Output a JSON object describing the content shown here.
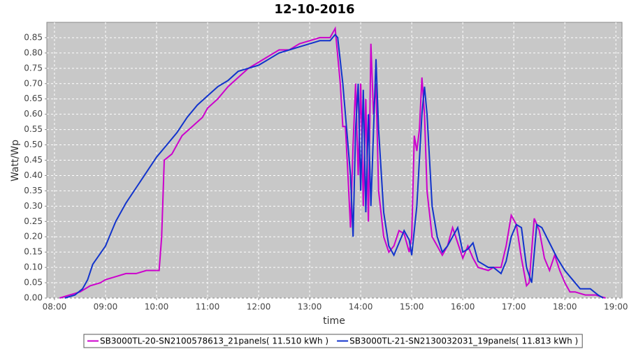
{
  "chart_data": {
    "type": "line",
    "title": "12-10-2016",
    "x_label": "time",
    "y_label": "Watt/Wp",
    "xlim": [
      7.85,
      19.12
    ],
    "ylim": [
      0,
      0.9
    ],
    "grid": true,
    "legend": "bottom",
    "xticks": [
      {
        "value": 8,
        "label": "08:00"
      },
      {
        "value": 9,
        "label": "09:00"
      },
      {
        "value": 10,
        "label": "10:00"
      },
      {
        "value": 11,
        "label": "11:00"
      },
      {
        "value": 12,
        "label": "12:00"
      },
      {
        "value": 13,
        "label": "13:00"
      },
      {
        "value": 14,
        "label": "14:00"
      },
      {
        "value": 15,
        "label": "15:00"
      },
      {
        "value": 16,
        "label": "16:00"
      },
      {
        "value": 17,
        "label": "17:00"
      },
      {
        "value": 18,
        "label": "18:00"
      },
      {
        "value": 19,
        "label": "19:00"
      }
    ],
    "yticks": [
      {
        "value": 0,
        "label": "0.00"
      },
      {
        "value": 0.05,
        "label": "0.05"
      },
      {
        "value": 0.1,
        "label": "0.10"
      },
      {
        "value": 0.15,
        "label": "0.15"
      },
      {
        "value": 0.2,
        "label": "0.20"
      },
      {
        "value": 0.25,
        "label": "0.25"
      },
      {
        "value": 0.3,
        "label": "0.30"
      },
      {
        "value": 0.35,
        "label": "0.35"
      },
      {
        "value": 0.4,
        "label": "0.40"
      },
      {
        "value": 0.45,
        "label": "0.45"
      },
      {
        "value": 0.5,
        "label": "0.50"
      },
      {
        "value": 0.55,
        "label": "0.55"
      },
      {
        "value": 0.6,
        "label": "0.60"
      },
      {
        "value": 0.65,
        "label": "0.65"
      },
      {
        "value": 0.7,
        "label": "0.70"
      },
      {
        "value": 0.75,
        "label": "0.75"
      },
      {
        "value": 0.8,
        "label": "0.80"
      },
      {
        "value": 0.85,
        "label": "0.85"
      }
    ],
    "series": [
      {
        "name": "SB3000TL-20-SN2100578613_21panels( 11.510 kWh )",
        "color": "#cc00cc",
        "x": [
          8.1,
          8.3,
          8.5,
          8.7,
          8.9,
          9.0,
          9.2,
          9.4,
          9.6,
          9.8,
          9.95,
          10.05,
          10.1,
          10.15,
          10.3,
          10.5,
          10.7,
          10.9,
          11.0,
          11.2,
          11.4,
          11.6,
          11.8,
          12.0,
          12.2,
          12.4,
          12.6,
          12.8,
          13.0,
          13.2,
          13.4,
          13.5,
          13.6,
          13.65,
          13.7,
          13.75,
          13.8,
          13.85,
          13.9,
          13.95,
          14.0,
          14.05,
          14.1,
          14.15,
          14.2,
          14.25,
          14.3,
          14.35,
          14.45,
          14.55,
          14.65,
          14.75,
          14.85,
          14.95,
          15.0,
          15.05,
          15.1,
          15.15,
          15.2,
          15.25,
          15.3,
          15.4,
          15.5,
          15.6,
          15.7,
          15.8,
          15.9,
          16.0,
          16.1,
          16.2,
          16.3,
          16.5,
          16.6,
          16.75,
          16.85,
          16.95,
          17.05,
          17.15,
          17.25,
          17.3,
          17.4,
          17.5,
          17.6,
          17.7,
          17.8,
          17.9,
          18.0,
          18.1,
          18.2,
          18.4,
          18.6,
          18.8
        ],
        "values": [
          0.0,
          0.01,
          0.02,
          0.04,
          0.05,
          0.06,
          0.07,
          0.08,
          0.08,
          0.09,
          0.09,
          0.09,
          0.2,
          0.45,
          0.47,
          0.53,
          0.56,
          0.59,
          0.62,
          0.65,
          0.69,
          0.72,
          0.75,
          0.77,
          0.79,
          0.81,
          0.81,
          0.83,
          0.84,
          0.85,
          0.85,
          0.88,
          0.7,
          0.56,
          0.56,
          0.4,
          0.23,
          0.5,
          0.7,
          0.4,
          0.7,
          0.3,
          0.65,
          0.25,
          0.83,
          0.6,
          0.7,
          0.35,
          0.2,
          0.15,
          0.17,
          0.22,
          0.21,
          0.15,
          0.2,
          0.53,
          0.48,
          0.55,
          0.72,
          0.6,
          0.35,
          0.2,
          0.17,
          0.14,
          0.17,
          0.23,
          0.18,
          0.13,
          0.17,
          0.13,
          0.1,
          0.09,
          0.1,
          0.1,
          0.17,
          0.27,
          0.24,
          0.13,
          0.04,
          0.05,
          0.26,
          0.22,
          0.13,
          0.09,
          0.14,
          0.09,
          0.05,
          0.02,
          0.02,
          0.01,
          0.01,
          0.0
        ]
      },
      {
        "name": "SB3000TL-21-SN2130032031_19panels( 11.813 kWh )",
        "color": "#1133cc",
        "x": [
          8.2,
          8.4,
          8.55,
          8.65,
          8.75,
          9.0,
          9.2,
          9.4,
          9.6,
          9.8,
          10.0,
          10.2,
          10.4,
          10.6,
          10.8,
          11.0,
          11.2,
          11.4,
          11.6,
          11.8,
          12.0,
          12.2,
          12.4,
          12.6,
          12.8,
          13.0,
          13.2,
          13.4,
          13.5,
          13.55,
          13.65,
          13.75,
          13.8,
          13.85,
          13.9,
          13.95,
          14.0,
          14.05,
          14.1,
          14.15,
          14.2,
          14.3,
          14.35,
          14.45,
          14.55,
          14.65,
          14.75,
          14.85,
          14.95,
          15.0,
          15.1,
          15.2,
          15.25,
          15.3,
          15.4,
          15.5,
          15.6,
          15.7,
          15.8,
          15.9,
          16.0,
          16.1,
          16.2,
          16.3,
          16.5,
          16.6,
          16.75,
          16.85,
          16.95,
          17.05,
          17.15,
          17.25,
          17.35,
          17.45,
          17.55,
          17.7,
          17.85,
          18.0,
          18.15,
          18.3,
          18.4,
          18.5,
          18.65,
          18.75
        ],
        "values": [
          0.0,
          0.01,
          0.03,
          0.06,
          0.11,
          0.17,
          0.25,
          0.31,
          0.36,
          0.41,
          0.46,
          0.5,
          0.54,
          0.59,
          0.63,
          0.66,
          0.69,
          0.71,
          0.74,
          0.75,
          0.76,
          0.78,
          0.8,
          0.81,
          0.82,
          0.83,
          0.84,
          0.84,
          0.86,
          0.85,
          0.7,
          0.5,
          0.4,
          0.2,
          0.55,
          0.7,
          0.35,
          0.68,
          0.28,
          0.6,
          0.3,
          0.78,
          0.55,
          0.28,
          0.17,
          0.14,
          0.18,
          0.22,
          0.19,
          0.14,
          0.3,
          0.6,
          0.69,
          0.6,
          0.3,
          0.2,
          0.15,
          0.17,
          0.2,
          0.23,
          0.15,
          0.16,
          0.18,
          0.12,
          0.1,
          0.1,
          0.08,
          0.12,
          0.2,
          0.24,
          0.23,
          0.1,
          0.05,
          0.24,
          0.23,
          0.18,
          0.13,
          0.09,
          0.06,
          0.03,
          0.03,
          0.03,
          0.01,
          0.0
        ]
      }
    ]
  }
}
